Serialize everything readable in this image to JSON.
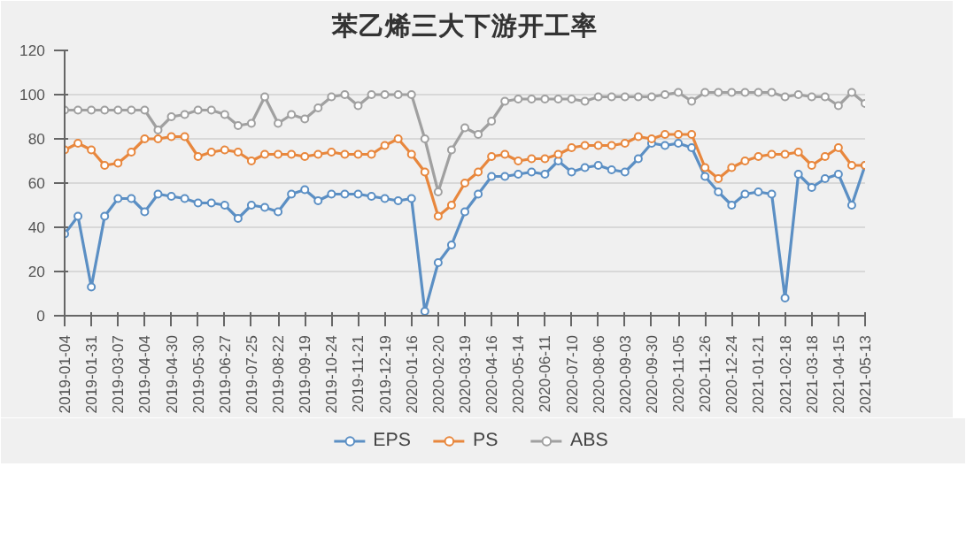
{
  "chart_data": {
    "type": "line",
    "title": "苯乙烯三大下游开工率",
    "categories": [
      "2019-01-04",
      null,
      "2019-01-31",
      null,
      "2019-03-07",
      null,
      "2019-04-04",
      null,
      "2019-04-30",
      null,
      "2019-05-30",
      null,
      "2019-06-27",
      null,
      "2019-07-25",
      null,
      "2019-08-22",
      null,
      "2019-09-19",
      null,
      "2019-10-24",
      null,
      "2019-11-21",
      null,
      "2019-12-19",
      null,
      "2020-01-16",
      null,
      "2020-02-20",
      null,
      "2020-03-19",
      null,
      "2020-04-16",
      null,
      "2020-05-14",
      null,
      "2020-06-11",
      null,
      "2020-07-10",
      null,
      "2020-08-06",
      null,
      "2020-09-03",
      null,
      "2020-09-30",
      null,
      "2020-11-05",
      null,
      "2020-11-26",
      null,
      "2020-12-24",
      null,
      "2021-01-21",
      null,
      "2021-02-18",
      null,
      "2021-03-18",
      null,
      "2021-04-15",
      null,
      "2021-05-13"
    ],
    "series": [
      {
        "name": "EPS",
        "color": "#5b8fc4",
        "values": [
          37,
          45,
          13,
          45,
          53,
          53,
          47,
          55,
          54,
          53,
          51,
          51,
          50,
          44,
          50,
          49,
          47,
          55,
          57,
          52,
          55,
          55,
          55,
          54,
          53,
          52,
          53,
          2,
          24,
          32,
          47,
          55,
          63,
          63,
          64,
          65,
          64,
          70,
          65,
          67,
          68,
          66,
          65,
          71,
          78,
          77,
          78,
          76,
          63,
          56,
          50,
          55,
          56,
          55,
          8,
          64,
          58,
          62,
          64,
          50,
          68
        ]
      },
      {
        "name": "PS",
        "color": "#e8873d",
        "values": [
          75,
          78,
          75,
          68,
          69,
          74,
          80,
          80,
          81,
          81,
          72,
          74,
          75,
          74,
          70,
          73,
          73,
          73,
          72,
          73,
          74,
          73,
          73,
          73,
          77,
          80,
          73,
          65,
          45,
          50,
          60,
          65,
          72,
          73,
          70,
          71,
          71,
          73,
          76,
          77,
          77,
          77,
          78,
          81,
          80,
          82,
          82,
          82,
          67,
          62,
          67,
          70,
          72,
          73,
          73,
          74,
          68,
          72,
          76,
          68,
          68
        ]
      },
      {
        "name": "ABS",
        "color": "#a0a0a0",
        "values": [
          93,
          93,
          93,
          93,
          93,
          93,
          93,
          84,
          90,
          91,
          93,
          93,
          91,
          86,
          87,
          99,
          87,
          91,
          89,
          94,
          99,
          100,
          95,
          100,
          100,
          100,
          100,
          80,
          56,
          75,
          85,
          82,
          88,
          97,
          98,
          98,
          98,
          98,
          98,
          97,
          99,
          99,
          99,
          99,
          99,
          100,
          101,
          97,
          101,
          101,
          101,
          101,
          101,
          101,
          99,
          100,
          99,
          99,
          95,
          101,
          96
        ]
      }
    ],
    "ylim": [
      0,
      120
    ],
    "yticks": [
      0,
      20,
      40,
      60,
      80,
      100,
      120
    ],
    "grid": "y",
    "legend": "bottom",
    "marker": "circle",
    "line_style": "solid"
  }
}
